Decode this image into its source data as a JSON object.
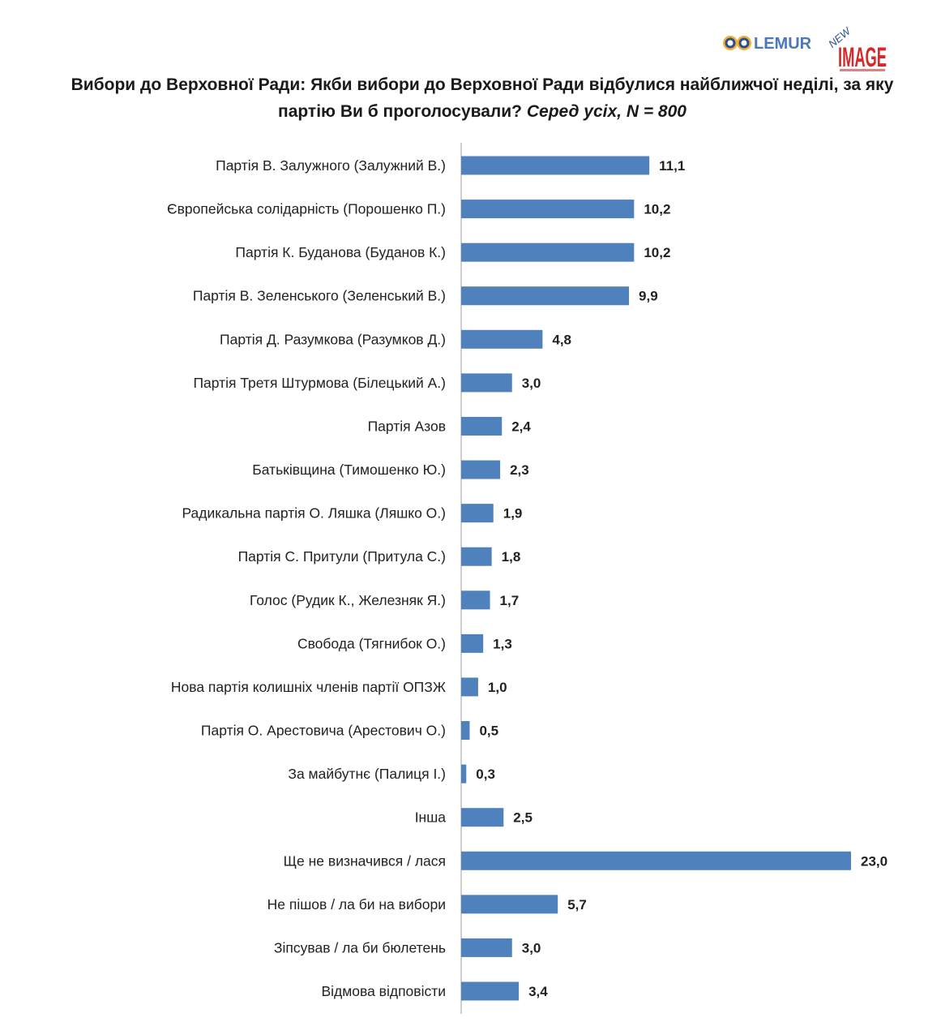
{
  "logos": {
    "lemur": "LEMUR",
    "newimage_new": "NEW",
    "newimage_image": "IMAGE"
  },
  "chart_data": {
    "type": "bar",
    "orientation": "horizontal",
    "title_main": "Вибори до Верховної Ради: Якби вибори до Верховної Ради відбулися найближчої неділі, за яку партію Ви б проголосували?",
    "title_sub": "Серед усіх, N = 800",
    "categories": [
      "Партія В. Залужного (Залужний В.)",
      "Європейська солідарність (Порошенко П.)",
      "Партія К. Буданова (Буданов К.)",
      "Партія В. Зеленського (Зеленський В.)",
      "Партія Д. Разумкова (Разумков Д.)",
      "Партія Третя Штурмова (Білецький А.)",
      "Партія Азов",
      "Батьківщина (Тимошенко Ю.)",
      "Радикальна партія О. Ляшка (Ляшко О.)",
      "Партія С. Притули (Притула С.)",
      "Голос (Рудик К., Железняк Я.)",
      "Свобода (Тягнибок О.)",
      "Нова партія колишніх членів партії ОПЗЖ",
      "Партія О. Арестовича (Арестович О.)",
      "За майбутнє (Палиця І.)",
      "Інша",
      "Ще не визначився / лася",
      "Не пішов / ла би на вибори",
      "Зіпсував / ла би бюлетень",
      "Відмова відповісти"
    ],
    "values": [
      11.1,
      10.2,
      10.2,
      9.9,
      4.8,
      3.0,
      2.4,
      2.3,
      1.9,
      1.8,
      1.7,
      1.3,
      1.0,
      0.5,
      0.3,
      2.5,
      23.0,
      5.7,
      3.0,
      3.4
    ],
    "value_labels": [
      "11,1",
      "10,2",
      "10,2",
      "9,9",
      "4,8",
      "3,0",
      "2,4",
      "2,3",
      "1,9",
      "1,8",
      "1,7",
      "1,3",
      "1,0",
      "0,5",
      "0,3",
      "2,5",
      "23,0",
      "5,7",
      "3,0",
      "3,4"
    ],
    "xlim": [
      0,
      23
    ],
    "grid": false,
    "bar_color": "#4f81bd"
  }
}
